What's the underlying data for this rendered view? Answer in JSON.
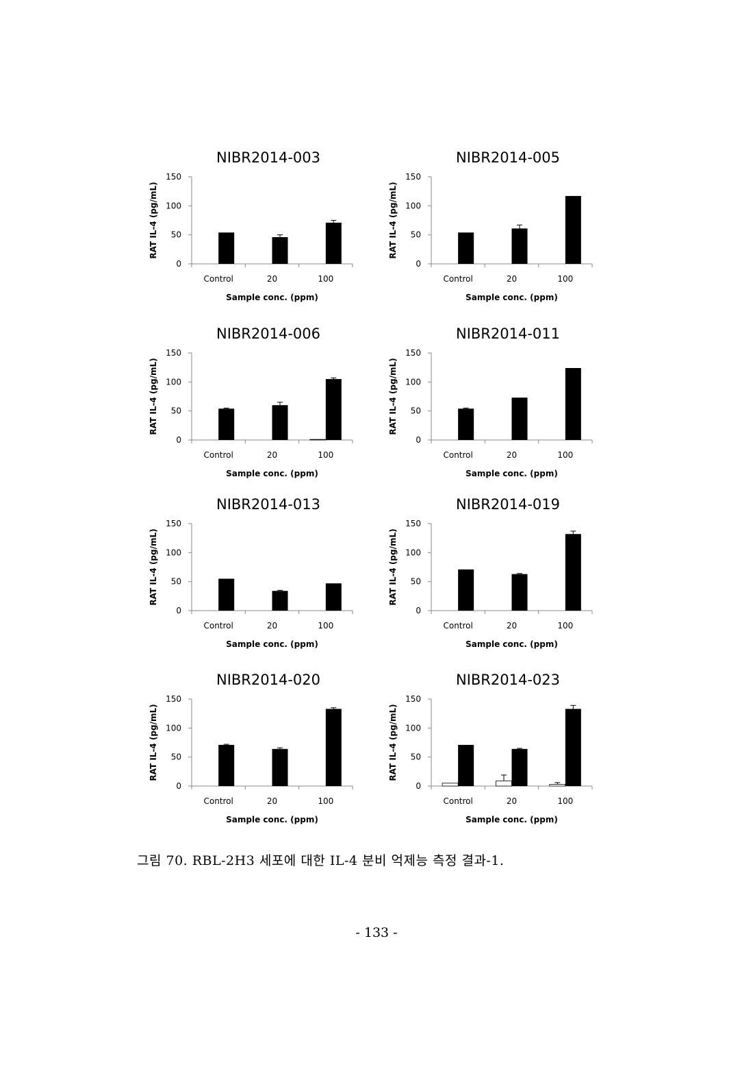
{
  "chart_data": [
    {
      "type": "bar",
      "title": "NIBR2014-003",
      "xlabel": "Sample conc. (ppm)",
      "ylabel": "RAT IL-4 (pg/mL)",
      "categories": [
        "Control",
        "20",
        "100"
      ],
      "ylim": [
        0,
        150
      ],
      "yticks": [
        "0",
        "50",
        "100",
        "150"
      ],
      "series": [
        {
          "values": [
            0,
            0,
            0
          ],
          "errors": [
            0,
            0,
            0
          ],
          "color": "#ffffff"
        },
        {
          "values": [
            54,
            46,
            71
          ],
          "errors": [
            0,
            4,
            4
          ],
          "color": "#000000"
        }
      ]
    },
    {
      "type": "bar",
      "title": "NIBR2014-005",
      "xlabel": "Sample conc. (ppm)",
      "ylabel": "RAT IL-4 (pg/mL)",
      "categories": [
        "Control",
        "20",
        "100"
      ],
      "ylim": [
        0,
        150
      ],
      "yticks": [
        "0",
        "50",
        "100",
        "150"
      ],
      "series": [
        {
          "values": [
            0,
            0,
            0
          ],
          "errors": [
            0,
            0,
            0
          ],
          "color": "#ffffff"
        },
        {
          "values": [
            54,
            61,
            117
          ],
          "errors": [
            0,
            6,
            0
          ],
          "color": "#000000"
        }
      ]
    },
    {
      "type": "bar",
      "title": "NIBR2014-006",
      "xlabel": "Sample conc. (ppm)",
      "ylabel": "RAT IL-4 (pg/mL)",
      "categories": [
        "Control",
        "20",
        "100"
      ],
      "ylim": [
        0,
        150
      ],
      "yticks": [
        "0",
        "50",
        "100",
        "150"
      ],
      "series": [
        {
          "values": [
            0,
            0,
            1
          ],
          "errors": [
            0,
            0,
            0
          ],
          "color": "#ffffff"
        },
        {
          "values": [
            54,
            60,
            105
          ],
          "errors": [
            1,
            5,
            2
          ],
          "color": "#000000"
        }
      ]
    },
    {
      "type": "bar",
      "title": "NIBR2014-011",
      "xlabel": "Sample conc. (ppm)",
      "ylabel": "RAT IL-4 (pg/mL)",
      "categories": [
        "Control",
        "20",
        "100"
      ],
      "ylim": [
        0,
        150
      ],
      "yticks": [
        "0",
        "50",
        "100",
        "150"
      ],
      "series": [
        {
          "values": [
            0,
            0,
            0
          ],
          "errors": [
            0,
            0,
            0
          ],
          "color": "#ffffff"
        },
        {
          "values": [
            54,
            73,
            124
          ],
          "errors": [
            1,
            0,
            0
          ],
          "color": "#000000"
        }
      ]
    },
    {
      "type": "bar",
      "title": "NIBR2014-013",
      "xlabel": "Sample conc. (ppm)",
      "ylabel": "RAT IL-4 (pg/mL)",
      "categories": [
        "Control",
        "20",
        "100"
      ],
      "ylim": [
        0,
        150
      ],
      "yticks": [
        "0",
        "50",
        "100",
        "150"
      ],
      "series": [
        {
          "values": [
            0,
            0,
            0
          ],
          "errors": [
            0,
            0,
            0
          ],
          "color": "#ffffff"
        },
        {
          "values": [
            55,
            34,
            47
          ],
          "errors": [
            0,
            1,
            0
          ],
          "color": "#000000"
        }
      ]
    },
    {
      "type": "bar",
      "title": "NIBR2014-019",
      "xlabel": "Sample conc. (ppm)",
      "ylabel": "RAT IL-4 (pg/mL)",
      "categories": [
        "Control",
        "20",
        "100"
      ],
      "ylim": [
        0,
        150
      ],
      "yticks": [
        "0",
        "50",
        "100",
        "150"
      ],
      "series": [
        {
          "values": [
            0,
            0,
            0
          ],
          "errors": [
            0,
            0,
            0
          ],
          "color": "#ffffff"
        },
        {
          "values": [
            71,
            63,
            132
          ],
          "errors": [
            0,
            1,
            5
          ],
          "color": "#000000"
        }
      ]
    },
    {
      "type": "bar",
      "title": "NIBR2014-020",
      "xlabel": "Sample conc. (ppm)",
      "ylabel": "RAT IL-4 (pg/mL)",
      "categories": [
        "Control",
        "20",
        "100"
      ],
      "ylim": [
        0,
        150
      ],
      "yticks": [
        "0",
        "50",
        "100",
        "150"
      ],
      "series": [
        {
          "values": [
            0,
            0,
            0
          ],
          "errors": [
            0,
            0,
            0
          ],
          "color": "#ffffff"
        },
        {
          "values": [
            71,
            64,
            133
          ],
          "errors": [
            1,
            2,
            2
          ],
          "color": "#000000"
        }
      ]
    },
    {
      "type": "bar",
      "title": "NIBR2014-023",
      "xlabel": "Sample conc. (ppm)",
      "ylabel": "RAT IL-4 (pg/mL)",
      "categories": [
        "Control",
        "20",
        "100"
      ],
      "ylim": [
        0,
        150
      ],
      "yticks": [
        "0",
        "50",
        "100",
        "150"
      ],
      "series": [
        {
          "values": [
            5,
            9,
            3
          ],
          "errors": [
            0,
            10,
            3
          ],
          "color": "#ffffff"
        },
        {
          "values": [
            71,
            64,
            133
          ],
          "errors": [
            0,
            1,
            6
          ],
          "color": "#000000"
        }
      ]
    }
  ],
  "caption": "그림 70. RBL-2H3 세포에 대한 IL-4 분비 억제능 측정 결과-1.",
  "page_number": "- 133 -"
}
